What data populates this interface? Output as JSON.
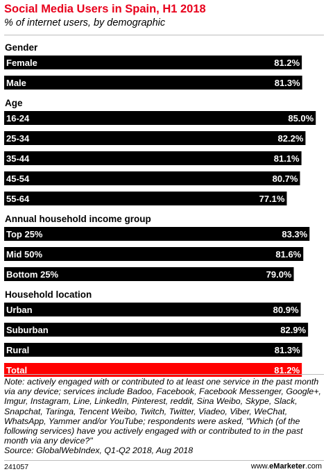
{
  "chart_data": {
    "type": "bar",
    "orientation": "horizontal",
    "title": "Social Media Users in Spain, H1 2018",
    "subtitle": "% of internet users, by demographic",
    "xlim": [
      0,
      100
    ],
    "grid": false,
    "highlight_color": "#ff0000",
    "bar_color": "#000000",
    "title_color": "#e8001c",
    "groups": [
      {
        "name": "Gender",
        "items": [
          {
            "label": "Female",
            "value": 81.2,
            "value_label": "81.2%"
          },
          {
            "label": "Male",
            "value": 81.3,
            "value_label": "81.3%"
          }
        ]
      },
      {
        "name": "Age",
        "items": [
          {
            "label": "16-24",
            "value": 85.0,
            "value_label": "85.0%"
          },
          {
            "label": "25-34",
            "value": 82.2,
            "value_label": "82.2%"
          },
          {
            "label": "35-44",
            "value": 81.1,
            "value_label": "81.1%"
          },
          {
            "label": "45-54",
            "value": 80.7,
            "value_label": "80.7%"
          },
          {
            "label": "55-64",
            "value": 77.1,
            "value_label": "77.1%"
          }
        ]
      },
      {
        "name": "Annual household income group",
        "items": [
          {
            "label": "Top 25%",
            "value": 83.3,
            "value_label": "83.3%"
          },
          {
            "label": "Mid 50%",
            "value": 81.6,
            "value_label": "81.6%"
          },
          {
            "label": "Bottom 25%",
            "value": 79.0,
            "value_label": "79.0%"
          }
        ]
      },
      {
        "name": "Household location",
        "items": [
          {
            "label": "Urban",
            "value": 80.9,
            "value_label": "80.9%"
          },
          {
            "label": "Suburban",
            "value": 82.9,
            "value_label": "82.9%"
          },
          {
            "label": "Rural",
            "value": 81.3,
            "value_label": "81.3%"
          }
        ]
      },
      {
        "name": "",
        "items": [
          {
            "label": "Total",
            "value": 81.2,
            "value_label": "81.2%",
            "highlight": true
          }
        ]
      }
    ]
  },
  "footer": {
    "note": "Note: actively engaged with or contributed to at least one service in the past month via any device; services include Badoo, Facebook, Facebook Messenger, Google+, Imgur, Instagram, Line, LinkedIn, Pinterest, reddit, Sina Weibo, Skype, Slack, Snapchat, Taringa, Tencent Weibo, Twitch, Twitter, Viadeo, Viber, WeChat, WhatsApp, Yammer and/or YouTube; respondents were asked, \"Which (of the following services) have you actively engaged with or contributed to in the past month via any device?\"",
    "source": "Source: GlobalWebIndex, Q1-Q2 2018, Aug 2018",
    "chart_id": "241057",
    "brand_prefix": "www.",
    "brand_name": "eMarketer",
    "brand_suffix": ".com"
  }
}
